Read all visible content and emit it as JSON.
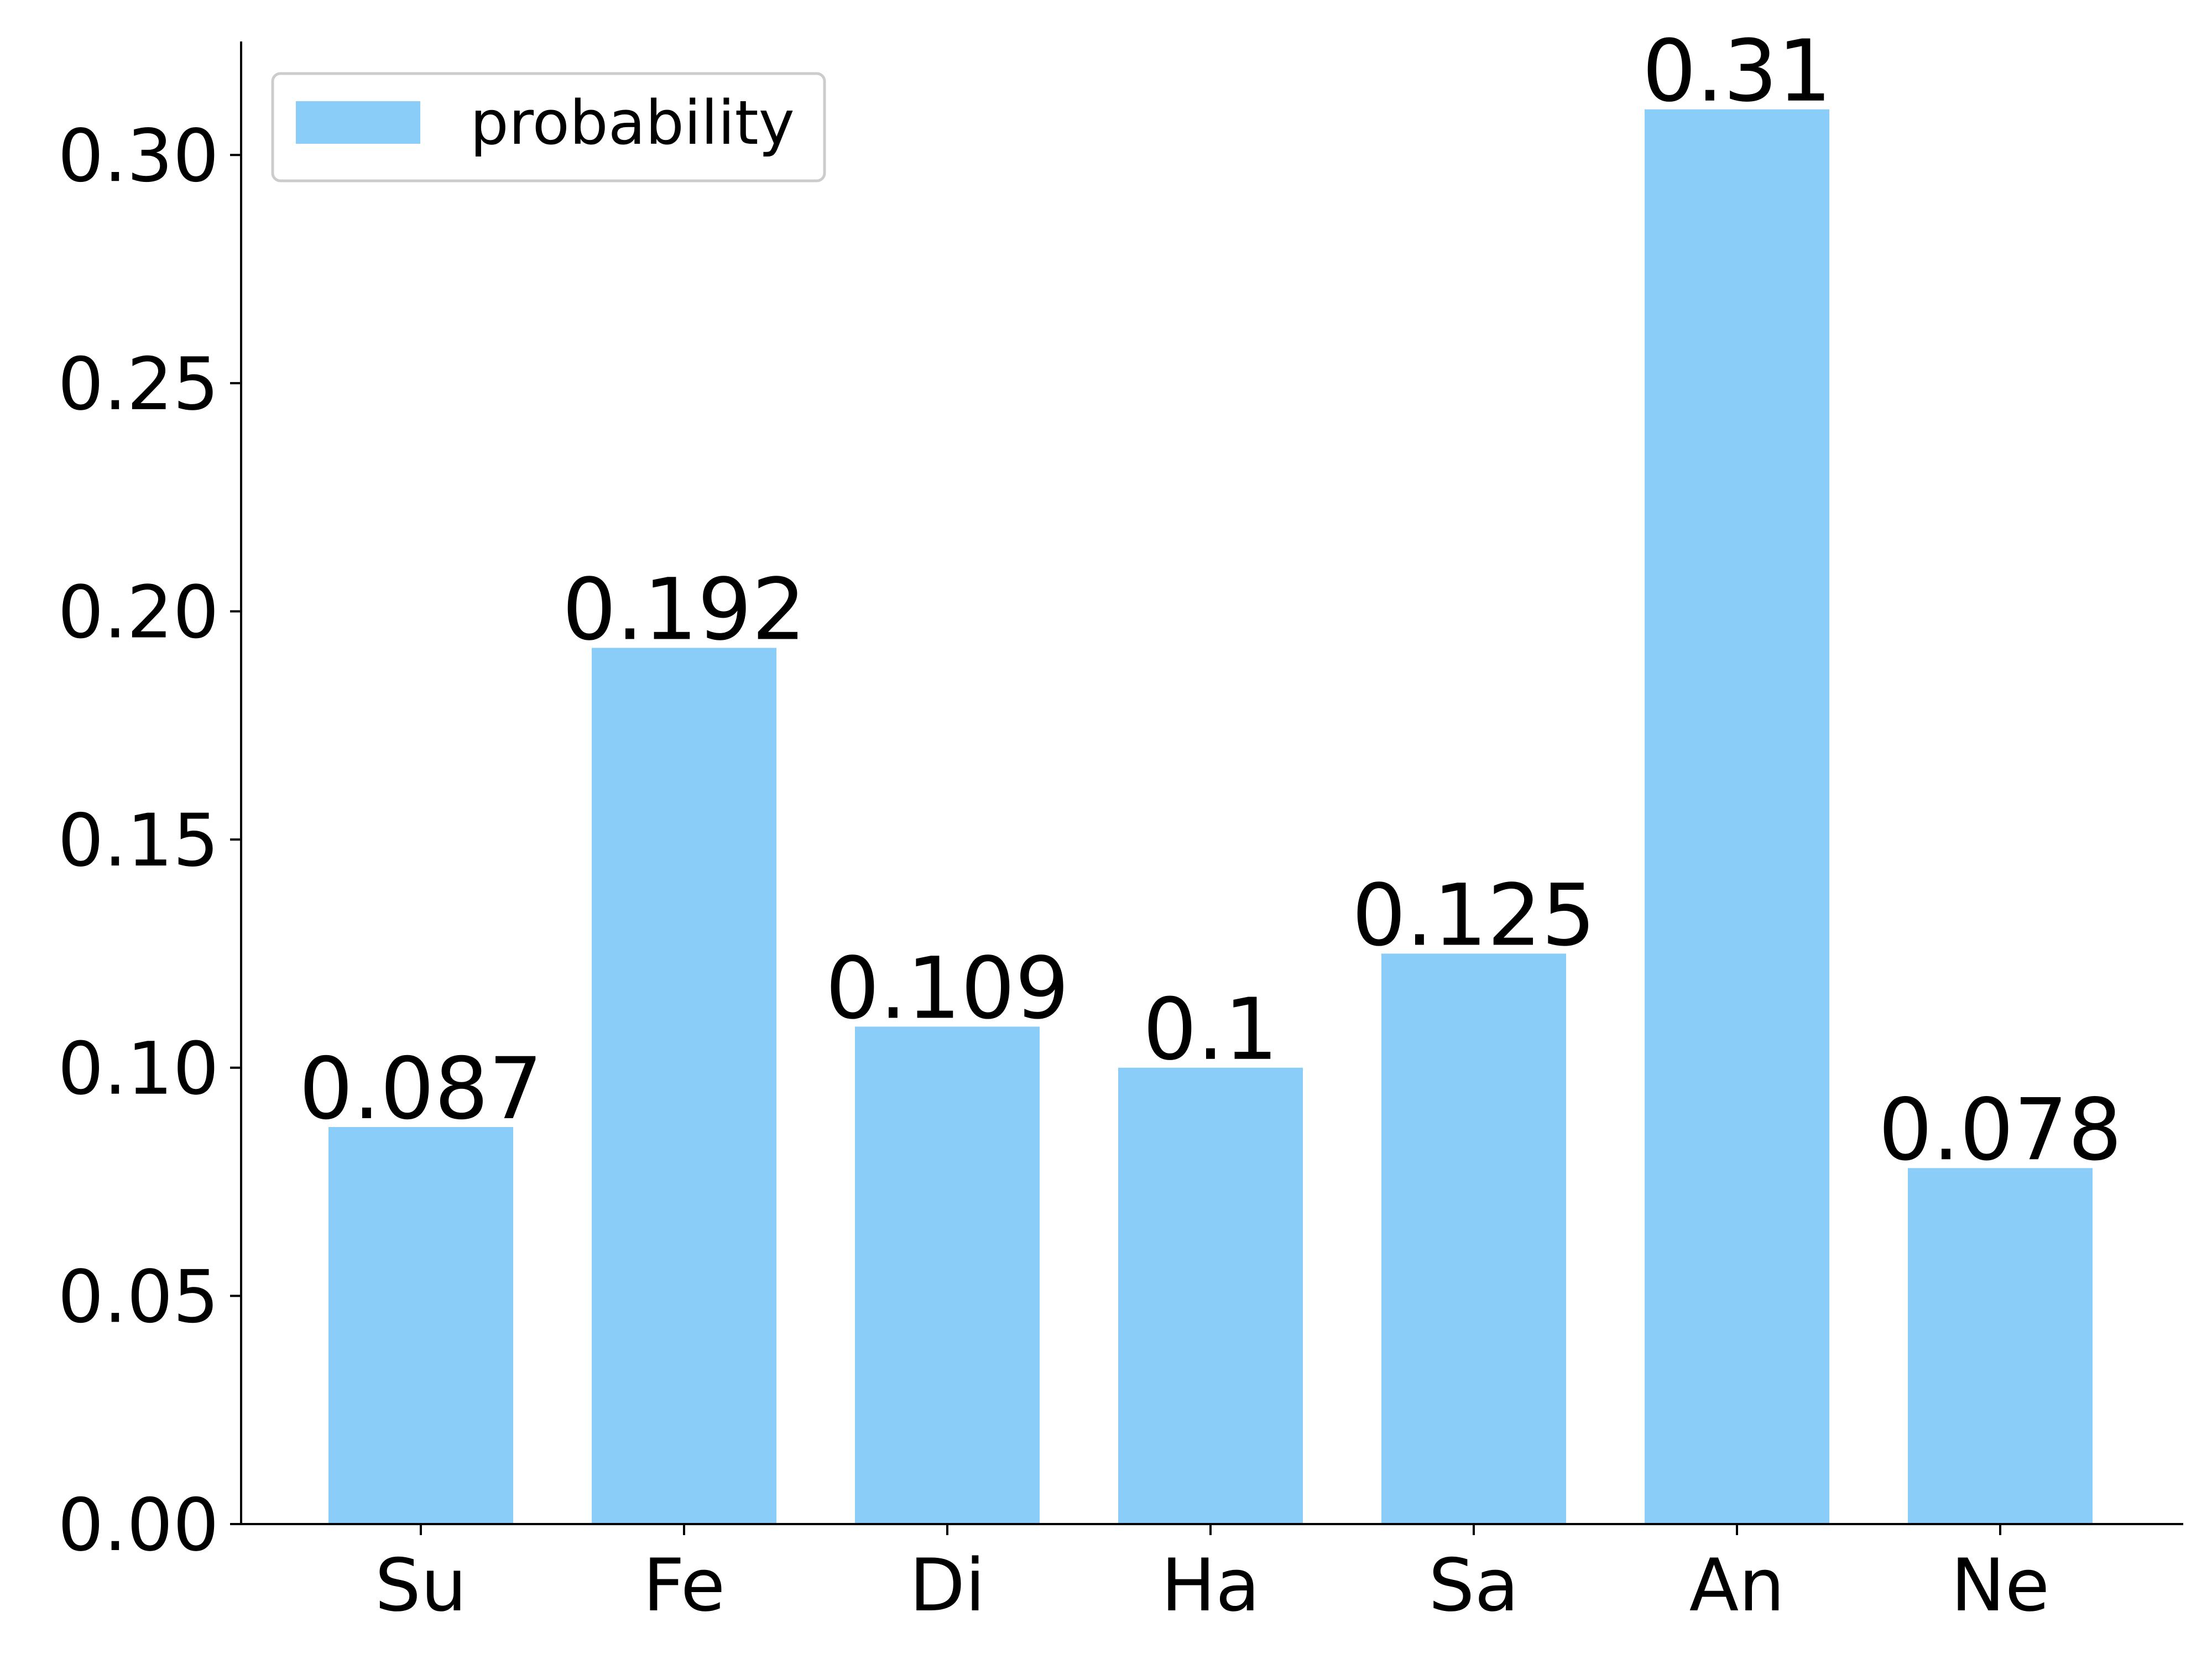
{
  "chart_data": {
    "type": "bar",
    "categories": [
      "Su",
      "Fe",
      "Di",
      "Ha",
      "Sa",
      "An",
      "Ne"
    ],
    "series": [
      {
        "name": "probability",
        "values": [
          0.087,
          0.192,
          0.109,
          0.1,
          0.125,
          0.31,
          0.078
        ],
        "value_labels": [
          "0.087",
          "0.192",
          "0.109",
          "0.1",
          "0.125",
          "0.31",
          "0.078"
        ]
      }
    ],
    "title": "",
    "xlabel": "",
    "ylabel": "",
    "ylim": [
      0,
      0.325
    ],
    "yticks": [
      "0.00",
      "0.05",
      "0.10",
      "0.15",
      "0.20",
      "0.25",
      "0.30"
    ],
    "ytick_values": [
      0,
      0.05,
      0.1,
      0.15,
      0.2,
      0.25,
      0.3
    ],
    "grid": false,
    "legend": {
      "position": "top-left",
      "entries": [
        "probability"
      ]
    },
    "colors": {
      "bar": "#89cdf8",
      "axis": "#000000",
      "legend_border": "#cccccc"
    }
  }
}
